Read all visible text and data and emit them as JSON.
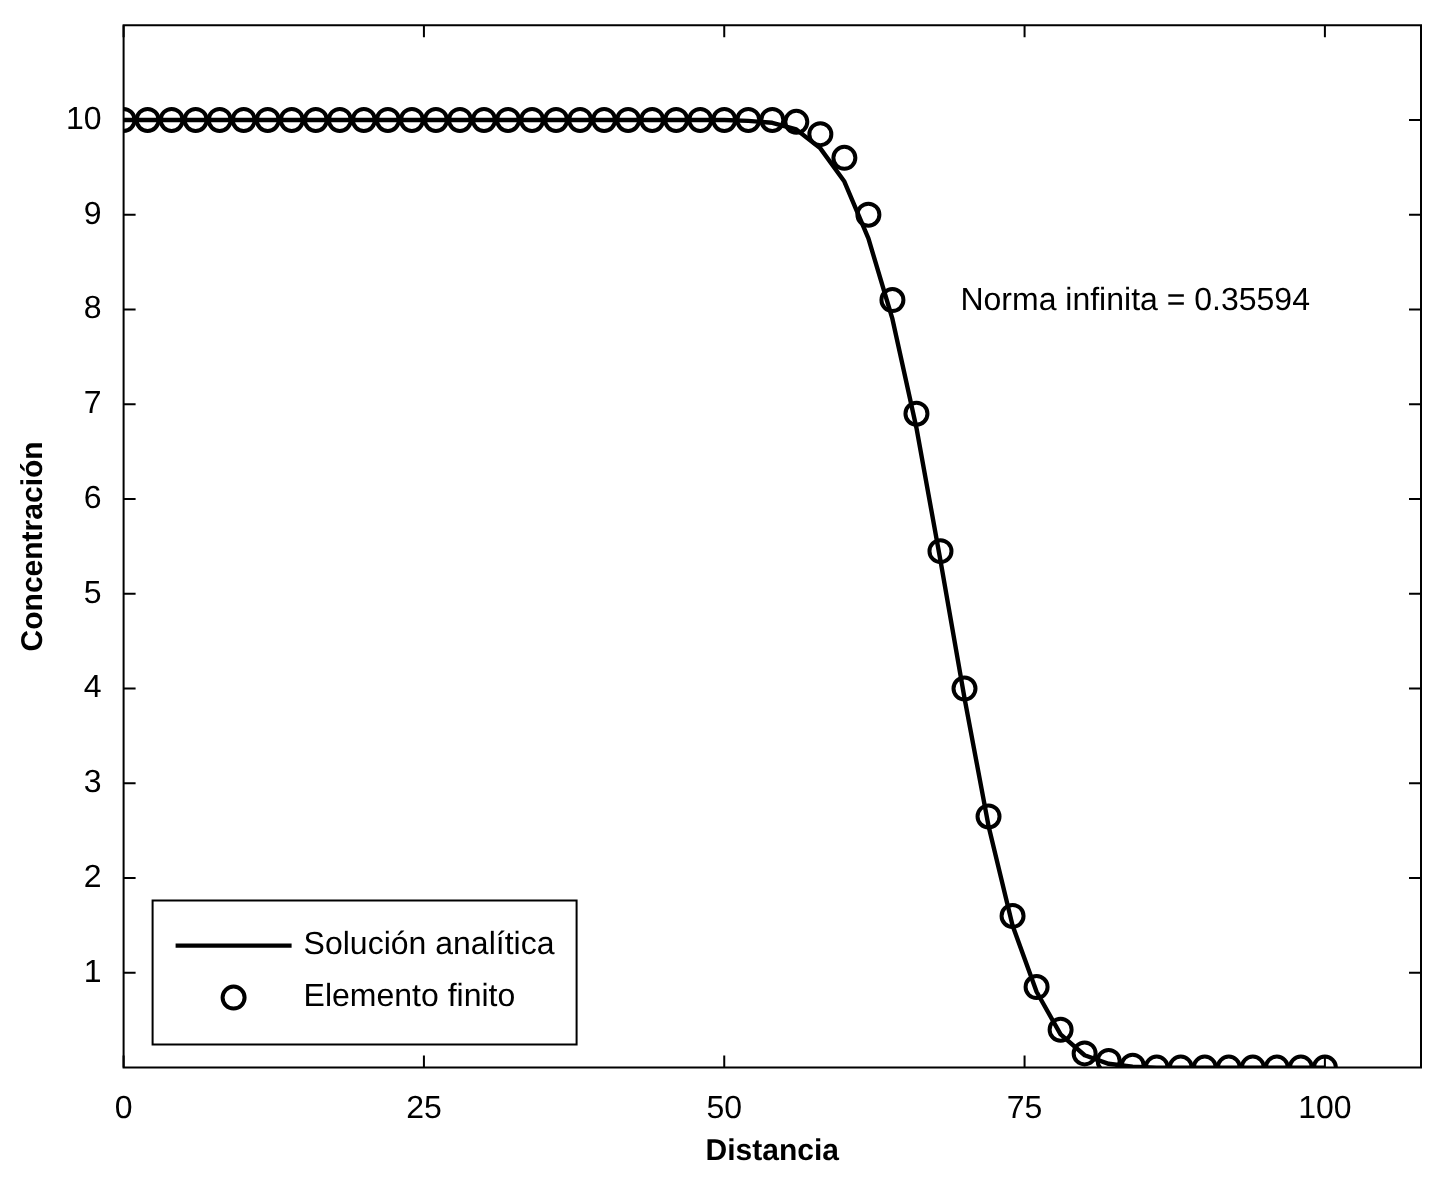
{
  "chart_data": {
    "type": "line",
    "xlabel": "Distancia",
    "ylabel": "Concentración",
    "xlim": [
      0,
      108
    ],
    "xticks": [
      0,
      25,
      50,
      75,
      100
    ],
    "ylim": [
      0,
      11
    ],
    "yticks": [
      1,
      2,
      3,
      4,
      5,
      6,
      7,
      8,
      9,
      10
    ],
    "grid": false,
    "legend": "bottom left",
    "annotations": [
      "Norma infinita = 0.35594"
    ],
    "series": [
      {
        "name": "Solución analítica",
        "color": "#000000",
        "x": [
          0,
          50,
          52,
          54,
          56,
          58,
          60,
          62,
          64,
          66,
          68,
          70,
          72,
          74,
          76,
          78,
          80,
          82,
          84,
          86,
          100
        ],
        "values": [
          10,
          10,
          9.99,
          9.97,
          9.9,
          9.7,
          9.35,
          8.75,
          7.9,
          6.75,
          5.35,
          3.9,
          2.55,
          1.5,
          0.8,
          0.35,
          0.13,
          0.04,
          0.01,
          0,
          0
        ]
      },
      {
        "name": "Elemento finito",
        "type": "scatter",
        "marker": "circle",
        "color": "#000000",
        "x": [
          0,
          2,
          4,
          6,
          8,
          10,
          12,
          14,
          16,
          18,
          20,
          22,
          24,
          26,
          28,
          30,
          32,
          34,
          36,
          38,
          40,
          42,
          44,
          46,
          48,
          50,
          52,
          54,
          56,
          58,
          60,
          62,
          64,
          66,
          68,
          70,
          72,
          74,
          76,
          78,
          80,
          82,
          84,
          86,
          88,
          90,
          92,
          94,
          96,
          98,
          100
        ],
        "values": [
          10,
          10,
          10,
          10,
          10,
          10,
          10,
          10,
          10,
          10,
          10,
          10,
          10,
          10,
          10,
          10,
          10,
          10,
          10,
          10,
          10,
          10,
          10,
          10,
          10,
          10,
          10,
          10,
          9.98,
          9.85,
          9.6,
          9.0,
          8.1,
          6.9,
          5.45,
          4.0,
          2.65,
          1.6,
          0.85,
          0.4,
          0.15,
          0.07,
          0.02,
          0,
          0,
          0,
          0,
          0,
          0,
          0,
          0
        ]
      }
    ]
  }
}
